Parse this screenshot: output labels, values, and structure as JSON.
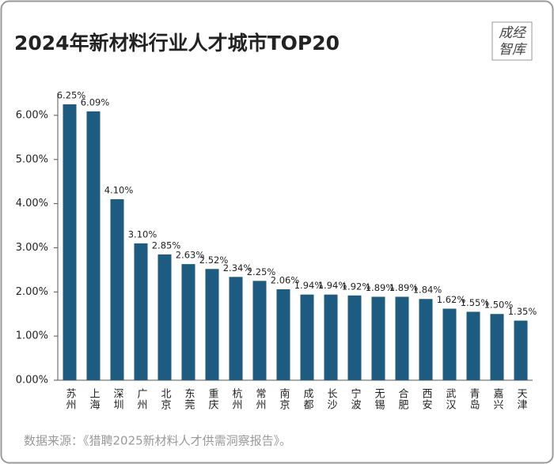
{
  "chart_data": {
    "type": "bar",
    "title": "2024年新材料行业人才城市TOP20",
    "logo": [
      "成经",
      "智库"
    ],
    "categories": [
      "苏州",
      "上海",
      "深圳",
      "广州",
      "北京",
      "东莞",
      "重庆",
      "杭州",
      "常州",
      "南京",
      "成都",
      "长沙",
      "宁波",
      "无锡",
      "合肥",
      "西安",
      "武汉",
      "青岛",
      "嘉兴",
      "天津"
    ],
    "values": [
      6.25,
      6.09,
      4.1,
      3.1,
      2.85,
      2.63,
      2.52,
      2.34,
      2.25,
      2.06,
      1.94,
      1.94,
      1.92,
      1.89,
      1.89,
      1.84,
      1.62,
      1.55,
      1.5,
      1.35
    ],
    "value_labels": [
      "6.25%",
      "6.09%",
      "4.10%",
      "3.10%",
      "2.85%",
      "2.63%",
      "2.52%",
      "2.34%",
      "2.25%",
      "2.06%",
      "1.94%",
      "1.94%",
      "1.92%",
      "1.89%",
      "1.89%",
      "1.84%",
      "1.62%",
      "1.55%",
      "1.50%",
      "1.35%"
    ],
    "color": "#1d5c80",
    "ylim": [
      0,
      6.5
    ],
    "yticks": [
      {
        "value": 0,
        "label": "0.00%"
      },
      {
        "value": 1,
        "label": "1.00%"
      },
      {
        "value": 2,
        "label": "2.00%"
      },
      {
        "value": 3,
        "label": "3.00%"
      },
      {
        "value": 4,
        "label": "4.00%"
      },
      {
        "value": 5,
        "label": "5.00%"
      },
      {
        "value": 6,
        "label": "6.00%"
      }
    ],
    "source": "数据来源：《猎聘2025新材料人才供需洞察报告》。"
  }
}
